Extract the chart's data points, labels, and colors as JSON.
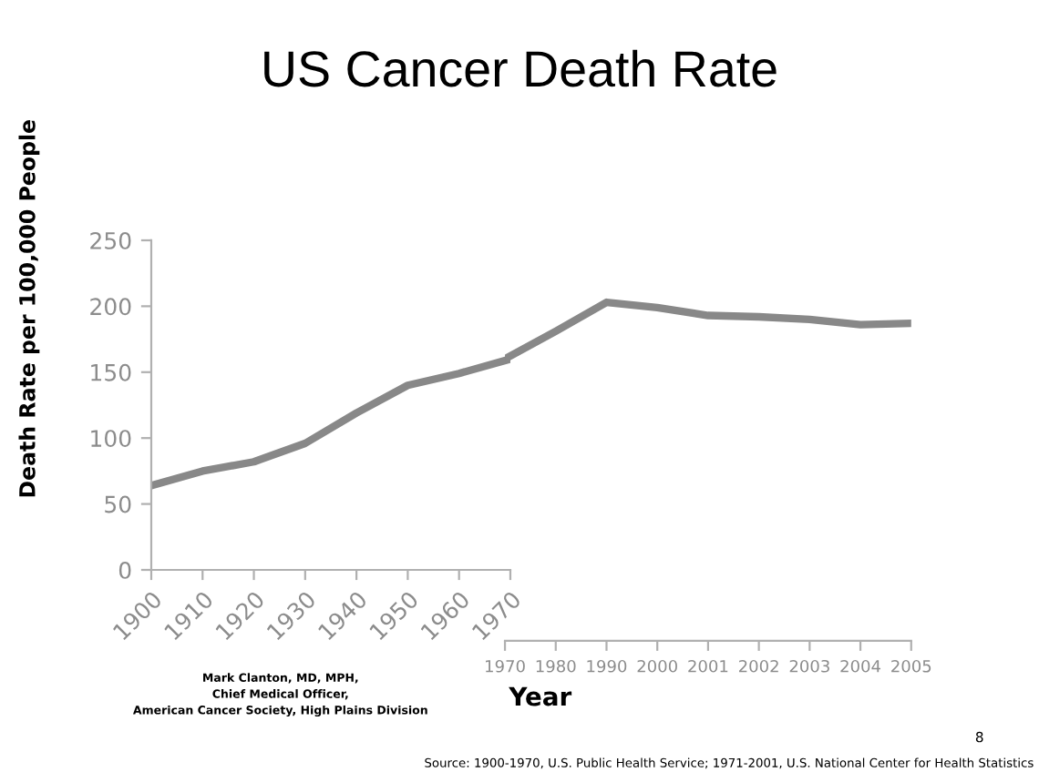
{
  "chart_data": [
    {
      "type": "line",
      "title": "US Cancer Death Rate",
      "ylabel": "Death Rate per 100,000 People",
      "xlabel": "Year",
      "categories": [
        "1900",
        "1910",
        "1920",
        "1930",
        "1940",
        "1950",
        "1960",
        "1970"
      ],
      "series": [
        {
          "color": "#888888",
          "values": [
            64,
            75,
            82,
            96,
            119,
            140,
            149,
            160
          ]
        }
      ],
      "ylim": [
        0,
        250
      ],
      "yticks": [
        0,
        50,
        100,
        150,
        200,
        250
      ],
      "grid": false,
      "legend": false,
      "marker": "none",
      "line_style": "solid",
      "annotations": [
        "Mark Clanton, MD, MPH,\nChief Medical Officer,\nAmerican Cancer Society, High Plains Division",
        "8",
        "Source: 1900-1970, U.S. Public Health Service; 1971-2001, U.S. National Center for Health Statistics"
      ]
    },
    {
      "type": "line",
      "categories": [
        "1970",
        "1980",
        "1990",
        "2000",
        "2001",
        "2002",
        "2003",
        "2004",
        "2005"
      ],
      "series": [
        {
          "color": "#888888",
          "values": [
            160,
            181,
            203,
            199,
            193,
            192,
            190,
            186,
            187
          ]
        }
      ],
      "ylim": [
        0,
        250
      ],
      "tick_labels": "x",
      "grid": false,
      "legend": false,
      "marker": "none",
      "line_style": "solid"
    }
  ]
}
